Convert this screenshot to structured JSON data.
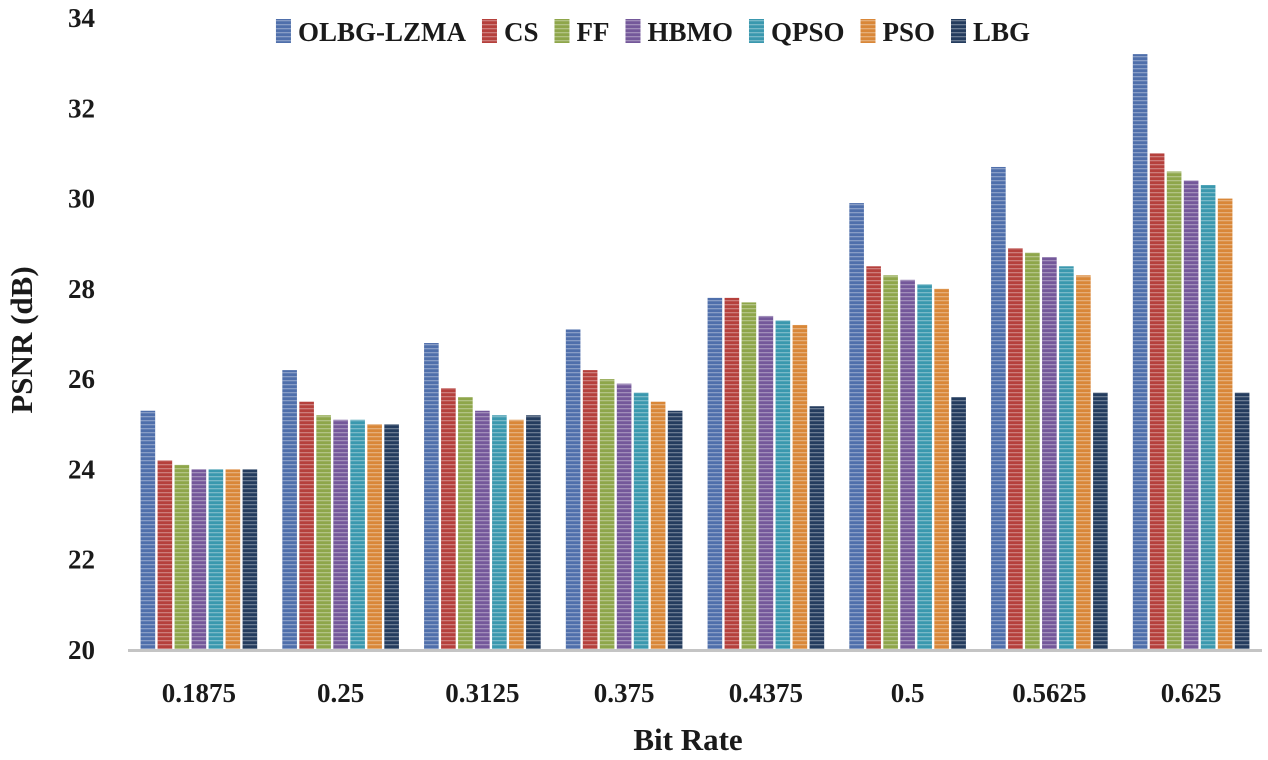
{
  "chart_data": {
    "type": "bar",
    "title": "",
    "xlabel": "Bit Rate",
    "ylabel": "PSNR (dB)",
    "ylim": [
      20,
      34
    ],
    "yticks": [
      20,
      22,
      24,
      26,
      28,
      30,
      32,
      34
    ],
    "grid": false,
    "legend_position": "top",
    "categories": [
      "0.1875",
      "0.25",
      "0.3125",
      "0.375",
      "0.4375",
      "0.5",
      "0.5625",
      "0.625"
    ],
    "series": [
      {
        "name": "OLBG-LZMA",
        "color": "#4f6fab",
        "values": [
          25.3,
          26.2,
          26.8,
          27.1,
          27.8,
          29.9,
          30.7,
          33.2
        ]
      },
      {
        "name": "CS",
        "color": "#b5403c",
        "values": [
          24.2,
          25.5,
          25.8,
          26.2,
          27.8,
          28.5,
          28.9,
          31.0
        ]
      },
      {
        "name": "FF",
        "color": "#8ea64a",
        "values": [
          24.1,
          25.2,
          25.6,
          26.0,
          27.7,
          28.3,
          28.8,
          30.6
        ]
      },
      {
        "name": "HBMO",
        "color": "#74589a",
        "values": [
          24.0,
          25.1,
          25.3,
          25.9,
          27.4,
          28.2,
          28.7,
          30.4
        ]
      },
      {
        "name": "QPSO",
        "color": "#3a98ae",
        "values": [
          24.0,
          25.1,
          25.2,
          25.7,
          27.3,
          28.1,
          28.5,
          30.3
        ]
      },
      {
        "name": "PSO",
        "color": "#d98738",
        "values": [
          24.0,
          25.0,
          25.1,
          25.5,
          27.2,
          28.0,
          28.3,
          30.0
        ]
      },
      {
        "name": "LBG",
        "color": "#243c5e",
        "values": [
          24.0,
          25.0,
          25.2,
          25.3,
          25.4,
          25.6,
          25.7,
          25.7
        ]
      }
    ]
  }
}
